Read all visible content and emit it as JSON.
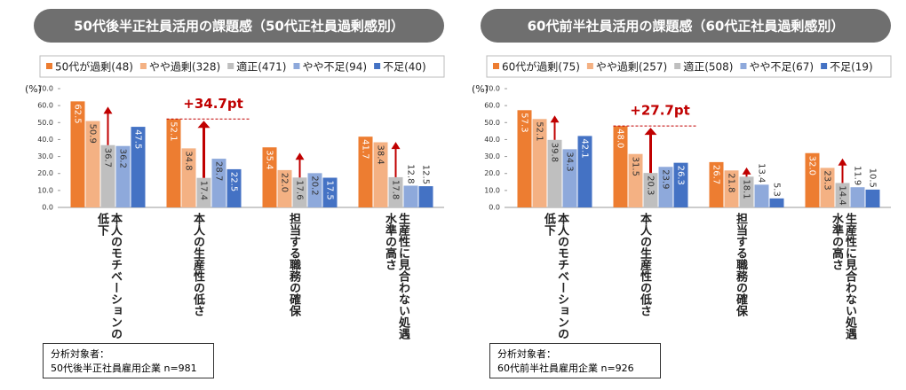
{
  "chart_data": [
    {
      "type": "bar",
      "title": "50代後半正社員活用の課題感（50代正社員過剰感別）",
      "y_label": "(%)",
      "categories": [
        "本人のモチベーションの低下",
        "本人の生産性の低さ",
        "担当する職務の確保",
        "生産性に見合わない処遇水準の高さ"
      ],
      "series": [
        {
          "name": "50代が過剰(48)",
          "color": "#ED7D31",
          "values": [
            62.5,
            52.1,
            35.4,
            41.7
          ],
          "value_labels": [
            "62.5",
            "52.1",
            "35.4",
            "41.7"
          ]
        },
        {
          "name": "やや過剰(328)",
          "color": "#F4B183",
          "values": [
            50.9,
            34.8,
            22.0,
            38.4
          ],
          "value_labels": [
            "50.9",
            "34.8",
            "22.0",
            "38.4"
          ]
        },
        {
          "name": "適正(471)",
          "color": "#BFBFBF",
          "values": [
            36.7,
            17.4,
            17.6,
            17.8
          ],
          "value_labels": [
            "36.7",
            "17.4",
            "17.6",
            "17.8"
          ]
        },
        {
          "name": "やや不足(94)",
          "color": "#8EA9DB",
          "values": [
            36.2,
            28.7,
            20.2,
            12.8
          ],
          "value_labels": [
            "36.2",
            "28.7",
            "20.2",
            "12.8"
          ]
        },
        {
          "name": "不足(40)",
          "color": "#4472C4",
          "values": [
            47.5,
            22.5,
            17.5,
            12.5
          ],
          "value_labels": [
            "47.5",
            "22.5",
            "17.5",
            "12.5"
          ]
        }
      ],
      "ylim": [
        0,
        70
      ],
      "yticks": [
        {
          "value": 0,
          "label": "0.0"
        },
        {
          "value": 10,
          "label": "10.0"
        },
        {
          "value": 20,
          "label": "20.0"
        },
        {
          "value": 30,
          "label": "30.0"
        },
        {
          "value": 40,
          "label": "40.0"
        },
        {
          "value": 50,
          "label": "50.0"
        },
        {
          "value": 60,
          "label": "60.0"
        },
        {
          "value": 70,
          "label": "70.0"
        }
      ],
      "annotation": "+34.7pt",
      "note": [
        "分析対象者：",
        "50代後半正社員雇用企業 n=981"
      ]
    },
    {
      "type": "bar",
      "title": "60代前半社員活用の課題感（60代正社員過剰感別）",
      "y_label": "(%)",
      "categories": [
        "本人のモチベーションの低下",
        "本人の生産性の低さ",
        "担当する職務の確保",
        "生産性に見合わない処遇水準の高さ"
      ],
      "series": [
        {
          "name": "60代が過剰(75)",
          "color": "#ED7D31",
          "values": [
            57.3,
            48.0,
            26.7,
            32.0
          ],
          "value_labels": [
            "57.3",
            "48.0",
            "26.7",
            "32.0"
          ]
        },
        {
          "name": "やや過剰(257)",
          "color": "#F4B183",
          "values": [
            52.1,
            31.5,
            21.8,
            23.3
          ],
          "value_labels": [
            "52.1",
            "31.5",
            "21.8",
            "23.3"
          ]
        },
        {
          "name": "適正(508)",
          "color": "#BFBFBF",
          "values": [
            39.8,
            20.3,
            18.1,
            14.4
          ],
          "value_labels": [
            "39.8",
            "20.3",
            "18.1",
            "14.4"
          ]
        },
        {
          "name": "やや不足(67)",
          "color": "#8EA9DB",
          "values": [
            34.3,
            23.9,
            13.4,
            11.9
          ],
          "value_labels": [
            "34.3",
            "23.9",
            "13.4",
            "11.9"
          ]
        },
        {
          "name": "不足(19)",
          "color": "#4472C4",
          "values": [
            42.1,
            26.3,
            5.3,
            10.5
          ],
          "value_labels": [
            "42.1",
            "26.3",
            "5.3",
            "10.5"
          ]
        }
      ],
      "ylim": [
        0,
        70
      ],
      "yticks": [
        {
          "value": 0,
          "label": "0.0"
        },
        {
          "value": 10,
          "label": "10.0"
        },
        {
          "value": 20,
          "label": "20.0"
        },
        {
          "value": 30,
          "label": "30.0"
        },
        {
          "value": 40,
          "label": "40.0"
        },
        {
          "value": 50,
          "label": "50.0"
        },
        {
          "value": 60,
          "label": "60.0"
        },
        {
          "value": 70,
          "label": "70.0"
        }
      ],
      "annotation": "+27.7pt",
      "note": [
        "分析対象者：",
        "60代前半社員雇用企業 n=926"
      ]
    }
  ]
}
